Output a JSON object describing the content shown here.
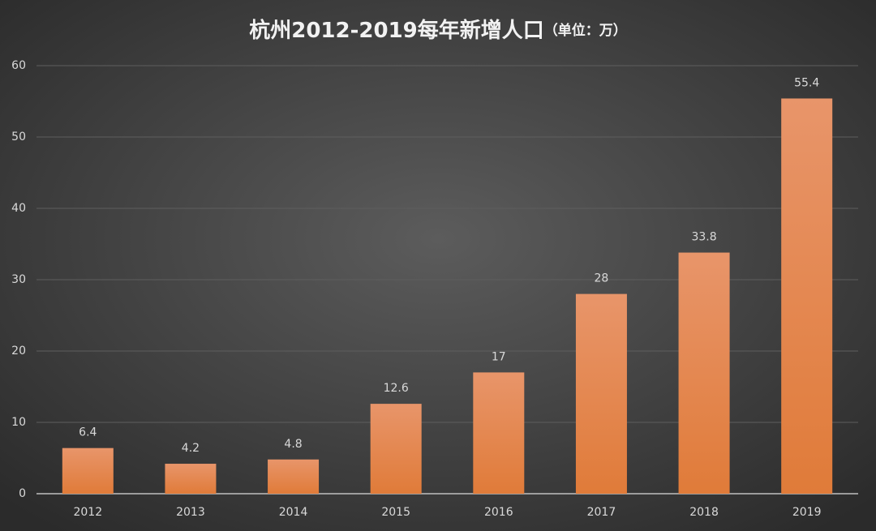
{
  "chart_data": {
    "type": "bar",
    "title": "杭州2012-2019每年新增人口",
    "subtitle": "（单位：万）",
    "categories": [
      "2012",
      "2013",
      "2014",
      "2015",
      "2016",
      "2017",
      "2018",
      "2019"
    ],
    "values": [
      6.4,
      4.2,
      4.8,
      12.6,
      17,
      28,
      33.8,
      55.4
    ],
    "color": "#e3803f",
    "ylim": [
      0,
      60
    ],
    "yticks": [
      0,
      10,
      20,
      30,
      40,
      50,
      60
    ],
    "grid": true
  }
}
